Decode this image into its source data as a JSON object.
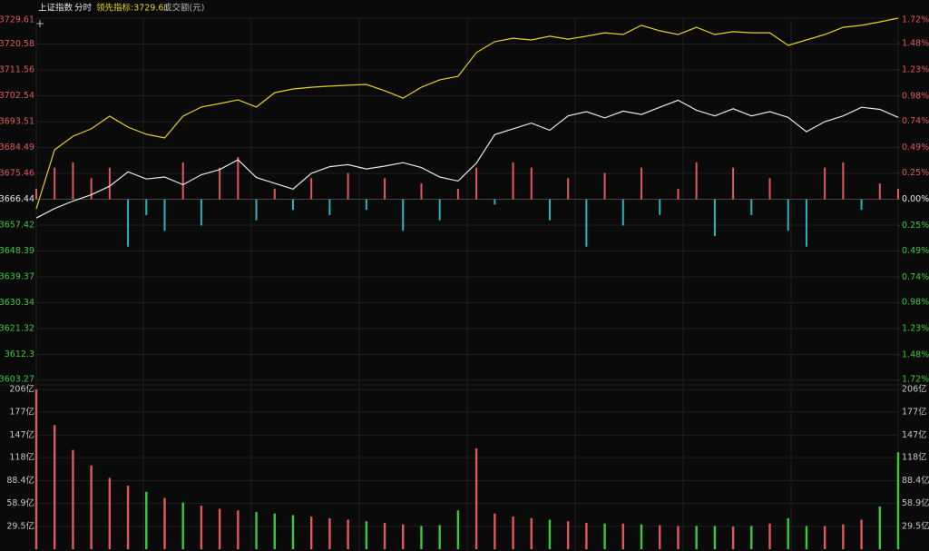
{
  "chart_data": {
    "type": "line",
    "header": {
      "name": "上证指数",
      "period": "分时",
      "indicator": "领先指标:3729.61",
      "volume_label": "成交额(元)"
    },
    "ylim": [
      3603.27,
      3729.61
    ],
    "yticks": [
      3729.61,
      3720.58,
      3711.56,
      3702.54,
      3693.51,
      3684.49,
      3675.46,
      3666.44,
      3657.42,
      3648.39,
      3639.37,
      3630.34,
      3621.32,
      3612.3,
      3603.27
    ],
    "y2lim": [
      -1.72,
      1.72
    ],
    "y2ticks": [
      {
        "value": 1.72,
        "label": "1.72%"
      },
      {
        "value": 1.48,
        "label": "1.48%"
      },
      {
        "value": 1.23,
        "label": "1.23%"
      },
      {
        "value": 0.98,
        "label": "0.98%"
      },
      {
        "value": 0.74,
        "label": "0.74%"
      },
      {
        "value": 0.49,
        "label": "0.49%"
      },
      {
        "value": 0.25,
        "label": "0.25%"
      },
      {
        "value": 0,
        "label": "0.00%"
      },
      {
        "value": -0.25,
        "label": "0.25%"
      },
      {
        "value": -0.49,
        "label": "0.49%"
      },
      {
        "value": -0.74,
        "label": "0.74%"
      },
      {
        "value": -0.98,
        "label": "0.98%"
      },
      {
        "value": -1.23,
        "label": "1.23%"
      },
      {
        "value": -1.48,
        "label": "1.48%"
      },
      {
        "value": -1.72,
        "label": "1.72%"
      }
    ],
    "series": [
      {
        "color": "#e8e8e8",
        "values": [
          3659.9,
          3663.2,
          3665.8,
          3668.0,
          3671.0,
          3676.0,
          3673.5,
          3674.2,
          3671.5,
          3675.0,
          3676.8,
          3680.2,
          3674.0,
          3672.0,
          3670.0,
          3675.5,
          3677.8,
          3678.5,
          3677.0,
          3678.0,
          3679.2,
          3677.5,
          3674.2,
          3672.8,
          3679.0,
          3689.0,
          3691.0,
          3693.0,
          3690.5,
          3695.5,
          3697.0,
          3694.8,
          3697.2,
          3696.0,
          3698.5,
          3701.0,
          3697.5,
          3695.5,
          3698.0,
          3695.5,
          3697.0,
          3695.0,
          3690.0,
          3693.5,
          3695.5,
          3698.5,
          3697.8,
          3695.0
        ]
      },
      {
        "color": "#e6d21e",
        "values": [
          3663.1,
          3683.7,
          3688.4,
          3691.0,
          3695.4,
          3691.6,
          3689.1,
          3687.8,
          3695.4,
          3698.6,
          3699.8,
          3701.1,
          3698.6,
          3703.6,
          3704.9,
          3705.5,
          3705.9,
          3706.2,
          3706.5,
          3704.3,
          3701.7,
          3705.5,
          3708.1,
          3709.3,
          3717.6,
          3721.4,
          3722.6,
          3722.0,
          3723.3,
          3722.3,
          3723.3,
          3724.5,
          3723.9,
          3727.1,
          3725.2,
          3723.9,
          3726.4,
          3723.9,
          3724.9,
          3724.5,
          3724.5,
          3720.1,
          3722.0,
          3723.9,
          3726.4,
          3727.1,
          3728.3,
          3729.6
        ]
      }
    ],
    "bars": {
      "axis": "y2",
      "up_color": "#e05a5a",
      "down_color": "#2ab3c0",
      "values": [
        0.1,
        0.3,
        0.35,
        0.2,
        0.3,
        -0.45,
        -0.15,
        -0.3,
        0.35,
        -0.25,
        0.3,
        0.4,
        -0.2,
        0.1,
        -0.1,
        0.2,
        -0.15,
        0.25,
        -0.1,
        0.2,
        -0.3,
        0.15,
        -0.2,
        0.1,
        0.3,
        -0.05,
        0.35,
        0.3,
        -0.2,
        0.2,
        -0.45,
        0.25,
        -0.25,
        0.3,
        -0.15,
        0.1,
        0.35,
        -0.35,
        0.3,
        -0.15,
        0.2,
        -0.3,
        -0.45,
        0.3,
        0.35,
        -0.1,
        0.15,
        0.1
      ]
    },
    "volume": {
      "up_color": "#e05a5a",
      "down_color": "#3cc83c",
      "ylim": [
        0,
        206
      ],
      "yticks": [
        {
          "value": 206,
          "label": "206亿"
        },
        {
          "value": 177,
          "label": "177亿"
        },
        {
          "value": 147,
          "label": "147亿"
        },
        {
          "value": 118,
          "label": "118亿"
        },
        {
          "value": 88.4,
          "label": "88.4亿"
        },
        {
          "value": 58.9,
          "label": "58.9亿"
        },
        {
          "value": 29.5,
          "label": "29.5亿"
        }
      ],
      "values": [
        206,
        160,
        128,
        108,
        92,
        82,
        74,
        66,
        60,
        56,
        52,
        50,
        48,
        46,
        44,
        42,
        40,
        38,
        36,
        34,
        32,
        30,
        31,
        50,
        130,
        46,
        42,
        40,
        38,
        36,
        34,
        33,
        33,
        32,
        31,
        30,
        30,
        30,
        29,
        30,
        33,
        40,
        30,
        30,
        32,
        38,
        55,
        125
      ]
    },
    "grid": true
  }
}
